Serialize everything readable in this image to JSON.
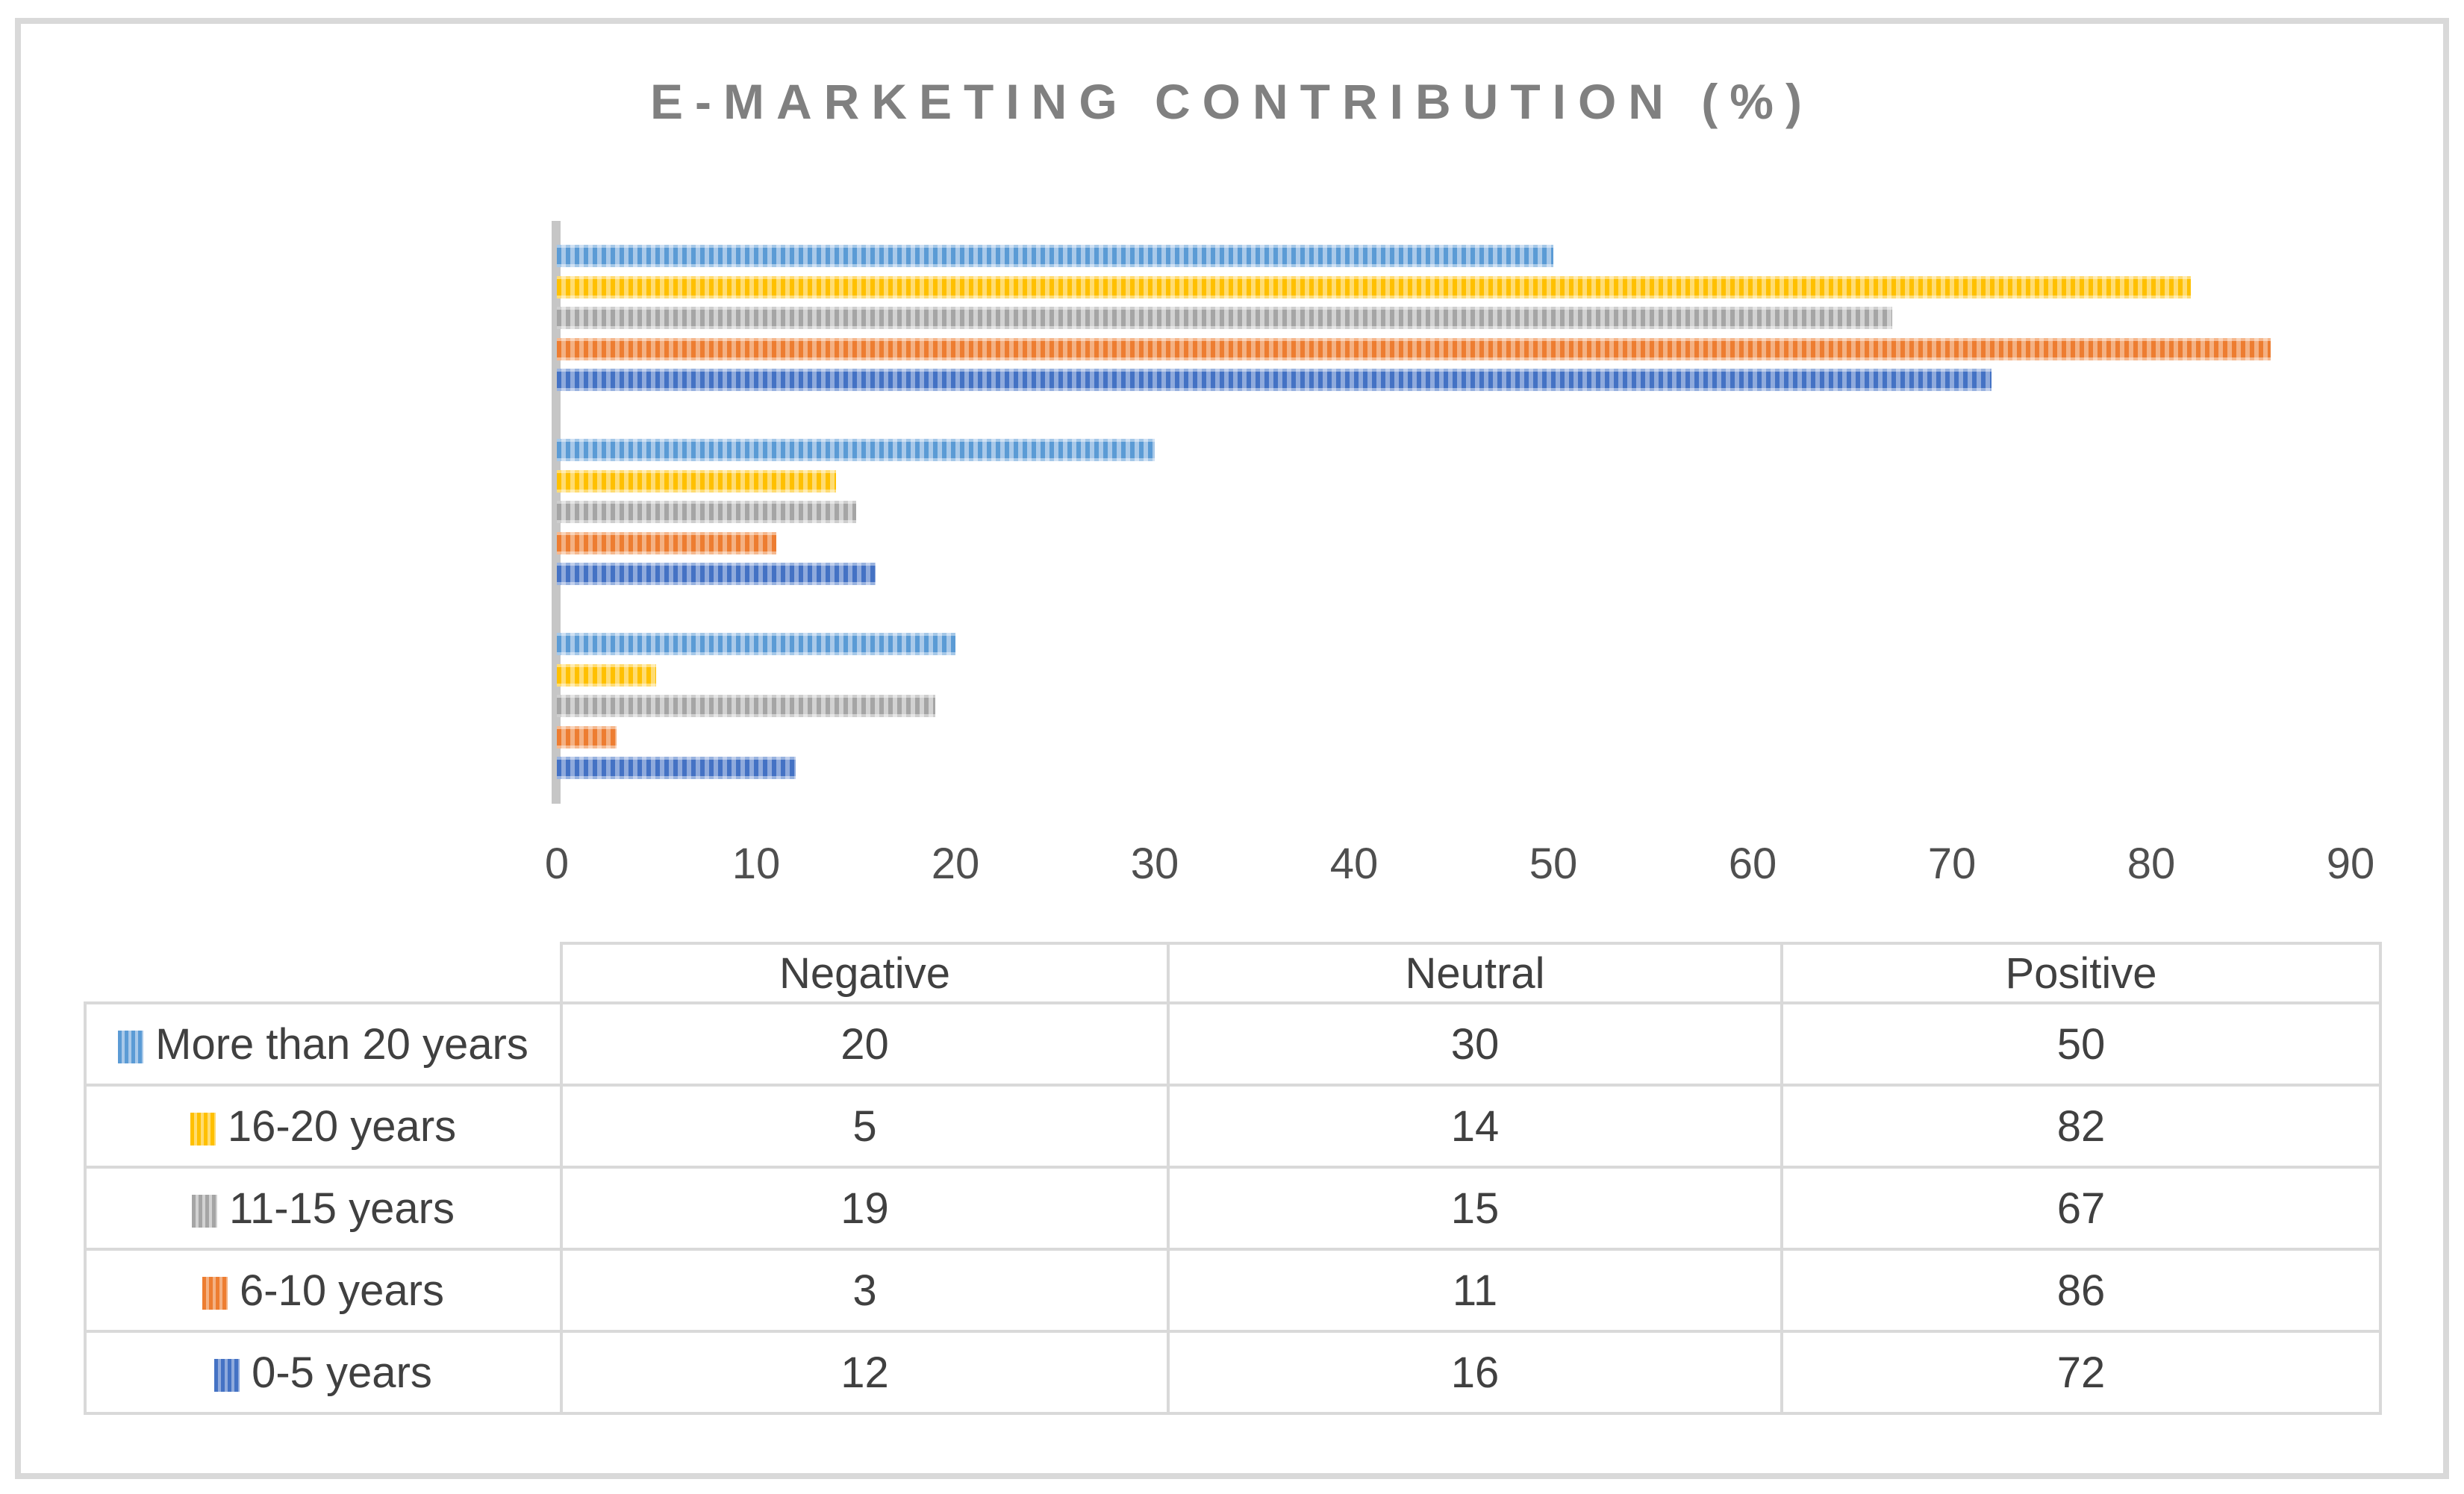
{
  "title": "E-MARKETING CONTRIBUTION (%)",
  "chart_data": {
    "type": "bar",
    "orientation": "horizontal",
    "title": "E-MARKETING CONTRIBUTION (%)",
    "categories": [
      "Positive",
      "Neutral",
      "Negative"
    ],
    "value_columns": [
      "Negative",
      "Neutral",
      "Positive"
    ],
    "series": [
      {
        "name": "More than 20 years",
        "color": "#5B9BD5",
        "tint": "#A9C9E9",
        "values": [
          20,
          30,
          50
        ]
      },
      {
        "name": "16-20 years",
        "color": "#FFC000",
        "tint": "#FFDC72",
        "values": [
          5,
          14,
          82
        ]
      },
      {
        "name": "11-15 years",
        "color": "#A5A5A5",
        "tint": "#D2D2D2",
        "values": [
          19,
          15,
          67
        ]
      },
      {
        "name": "6-10 years",
        "color": "#ED7D31",
        "tint": "#F4B183",
        "values": [
          3,
          11,
          86
        ]
      },
      {
        "name": "0-5 years",
        "color": "#4472C4",
        "tint": "#8FAADC",
        "values": [
          12,
          16,
          72
        ]
      }
    ],
    "x_ticks": [
      0,
      10,
      20,
      30,
      40,
      50,
      60,
      70,
      80,
      90
    ],
    "xlim": [
      0,
      90
    ],
    "grid": false,
    "legend_position": "table-below-chart",
    "table": {
      "column_headers": [
        "Negative",
        "Neutral",
        "Positive"
      ],
      "rows": [
        {
          "label": "More than 20 years",
          "values": [
            "20",
            "30",
            "50"
          ]
        },
        {
          "label": "16-20 years",
          "values": [
            "5",
            "14",
            "82"
          ]
        },
        {
          "label": "11-15 years",
          "values": [
            "19",
            "15",
            "67"
          ]
        },
        {
          "label": "6-10 years",
          "values": [
            "3",
            "11",
            "86"
          ]
        },
        {
          "label": "0-5 years",
          "values": [
            "12",
            "16",
            "72"
          ]
        }
      ]
    }
  },
  "colors": {
    "figure_border": "#D9D9D9",
    "table_border": "#D9D9D9",
    "axis_line": "#C6C6C6",
    "title_text": "#808080",
    "axis_text": "#4F4F4F",
    "table_text": "#404040"
  }
}
